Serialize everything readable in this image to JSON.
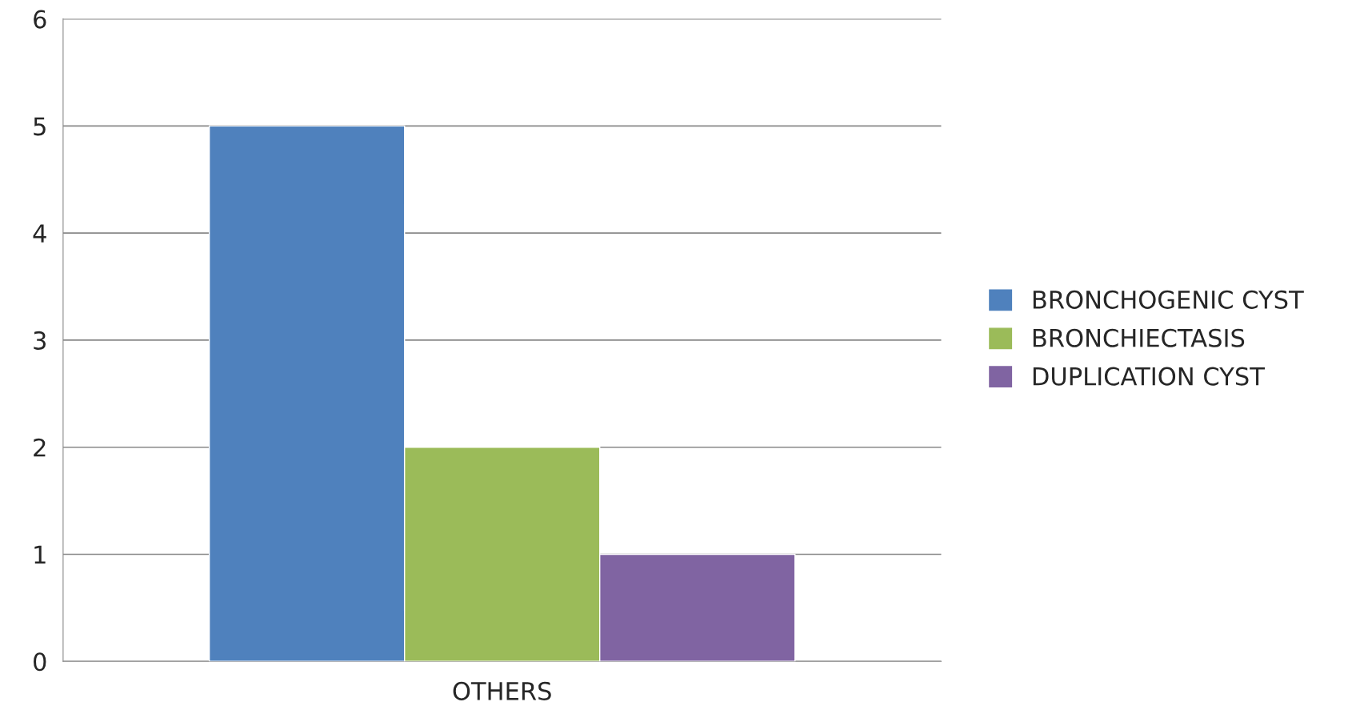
{
  "chart_data": {
    "type": "bar",
    "categories": [
      "OTHERS"
    ],
    "series": [
      {
        "name": "BRONCHOGENIC CYST",
        "color": "#4f81bd",
        "values": [
          5
        ]
      },
      {
        "name": "BRONCHIECTASIS",
        "color": "#9bbb59",
        "values": [
          2
        ]
      },
      {
        "name": "DUPLICATION CYST",
        "color": "#8064a2",
        "values": [
          1
        ]
      }
    ],
    "ylim": [
      0,
      6
    ],
    "yticks": [
      0,
      1,
      2,
      3,
      4,
      5,
      6
    ],
    "grid": "y",
    "legend": "right"
  }
}
